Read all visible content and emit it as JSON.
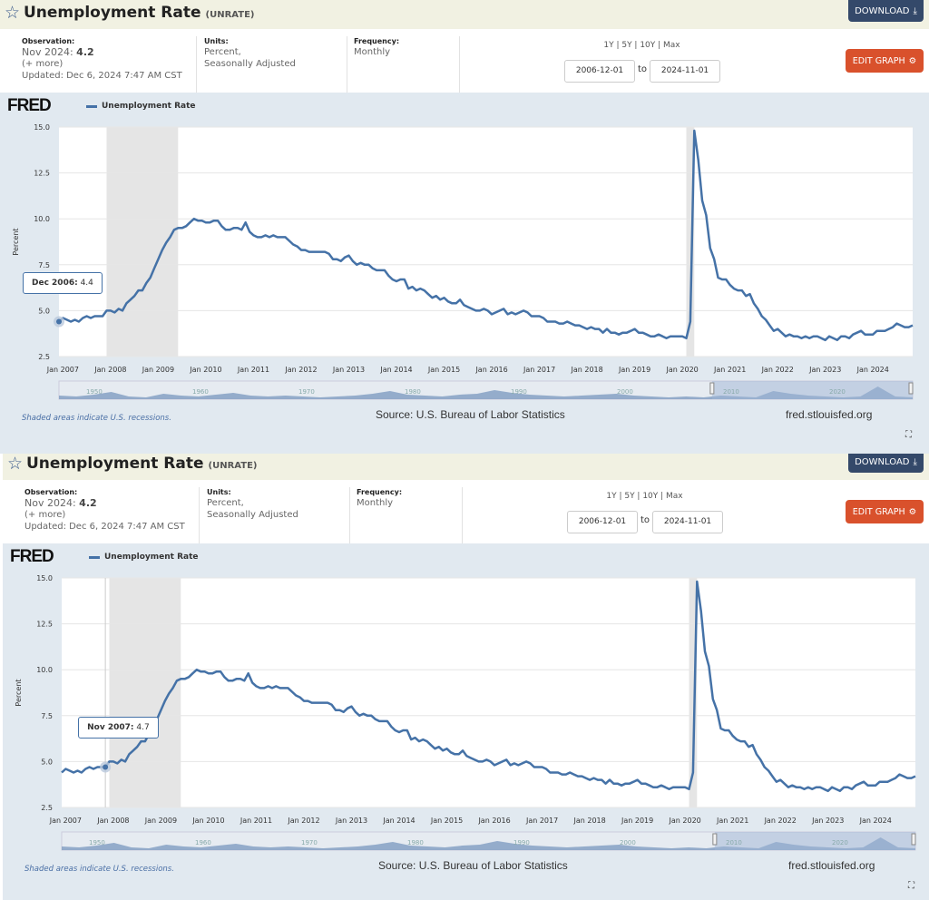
{
  "panels": [
    {
      "title": "Unemployment Rate",
      "code": "(UNRATE)",
      "download_label": "DOWNLOAD",
      "observation_label": "Observation:",
      "observation_date": "Nov 2024:",
      "observation_value": "4.2",
      "more_label": "(+ more)",
      "updated": "Updated: Dec 6, 2024 7:47 AM CST",
      "units_label": "Units:",
      "units_line1": "Percent,",
      "units_line2": "Seasonally Adjusted",
      "frequency_label": "Frequency:",
      "frequency_value": "Monthly",
      "ranges": "1Y | 5Y | 10Y | Max",
      "start_date": "2006-12-01",
      "to_label": "to",
      "end_date": "2024-11-01",
      "edit_label": "EDIT GRAPH",
      "fred_logo": "FRED",
      "legend_label": "Unemployment Rate",
      "recession_note": "Shaded areas indicate U.S. recessions.",
      "source": "Source: U.S. Bureau of Labor Statistics",
      "site": "fred.stlouisfed.org",
      "tooltip_date": "Dec 2006:",
      "tooltip_value": "4.4",
      "tooltip_index": 0
    },
    {
      "title": "Unemployment Rate",
      "code": "(UNRATE)",
      "download_label": "DOWNLOAD",
      "observation_label": "Observation:",
      "observation_date": "Nov 2024:",
      "observation_value": "4.2",
      "more_label": "(+ more)",
      "updated": "Updated: Dec 6, 2024 7:47 AM CST",
      "units_label": "Units:",
      "units_line1": "Percent,",
      "units_line2": "Seasonally Adjusted",
      "frequency_label": "Frequency:",
      "frequency_value": "Monthly",
      "ranges": "1Y | 5Y | 10Y | Max",
      "start_date": "2006-12-01",
      "to_label": "to",
      "end_date": "2024-11-01",
      "edit_label": "EDIT GRAPH",
      "fred_logo": "FRED",
      "legend_label": "Unemployment Rate",
      "recession_note": "Shaded areas indicate U.S. recessions.",
      "source": "Source: U.S. Bureau of Labor Statistics",
      "site": "fred.stlouisfed.org",
      "tooltip_date": "Nov 2007:",
      "tooltip_value": "4.7",
      "tooltip_index": 11
    }
  ],
  "chart_data": {
    "type": "line",
    "title": "Unemployment Rate",
    "ylabel": "Percent",
    "ylim": [
      2.5,
      15.0
    ],
    "yticks": [
      "2.5",
      "5.0",
      "7.5",
      "10.0",
      "12.5",
      "15.0"
    ],
    "start": "2006-12",
    "frequency": "monthly",
    "xticks": [
      "Jan 2007",
      "Jan 2008",
      "Jan 2009",
      "Jan 2010",
      "Jan 2011",
      "Jan 2012",
      "Jan 2013",
      "Jan 2014",
      "Jan 2015",
      "Jan 2016",
      "Jan 2017",
      "Jan 2018",
      "Jan 2019",
      "Jan 2020",
      "Jan 2021",
      "Jan 2022",
      "Jan 2023",
      "Jan 2024"
    ],
    "navigator_labels": [
      "1950",
      "1960",
      "1970",
      "1980",
      "1990",
      "2000",
      "2010",
      "2020"
    ],
    "recessions": [
      [
        "2007-12",
        "2009-06"
      ],
      [
        "2020-02",
        "2020-04"
      ]
    ],
    "color": "#4572a7",
    "values": [
      4.4,
      4.6,
      4.5,
      4.4,
      4.5,
      4.4,
      4.6,
      4.7,
      4.6,
      4.7,
      4.7,
      4.7,
      5.0,
      5.0,
      4.9,
      5.1,
      5.0,
      5.4,
      5.6,
      5.8,
      6.1,
      6.1,
      6.5,
      6.8,
      7.3,
      7.8,
      8.3,
      8.7,
      9.0,
      9.4,
      9.5,
      9.5,
      9.6,
      9.8,
      10.0,
      9.9,
      9.9,
      9.8,
      9.8,
      9.9,
      9.9,
      9.6,
      9.4,
      9.4,
      9.5,
      9.5,
      9.4,
      9.8,
      9.3,
      9.1,
      9.0,
      9.0,
      9.1,
      9.0,
      9.1,
      9.0,
      9.0,
      9.0,
      8.8,
      8.6,
      8.5,
      8.3,
      8.3,
      8.2,
      8.2,
      8.2,
      8.2,
      8.2,
      8.1,
      7.8,
      7.8,
      7.7,
      7.9,
      8.0,
      7.7,
      7.5,
      7.6,
      7.5,
      7.5,
      7.3,
      7.2,
      7.2,
      7.2,
      6.9,
      6.7,
      6.6,
      6.7,
      6.7,
      6.2,
      6.3,
      6.1,
      6.2,
      6.1,
      5.9,
      5.7,
      5.8,
      5.6,
      5.7,
      5.5,
      5.4,
      5.4,
      5.6,
      5.3,
      5.2,
      5.1,
      5.0,
      5.0,
      5.1,
      5.0,
      4.8,
      4.9,
      5.0,
      5.1,
      4.8,
      4.9,
      4.8,
      4.9,
      5.0,
      4.9,
      4.7,
      4.7,
      4.7,
      4.6,
      4.4,
      4.4,
      4.4,
      4.3,
      4.3,
      4.4,
      4.3,
      4.2,
      4.2,
      4.1,
      4.0,
      4.1,
      4.0,
      4.0,
      3.8,
      4.0,
      3.8,
      3.8,
      3.7,
      3.8,
      3.8,
      3.9,
      4.0,
      3.8,
      3.8,
      3.7,
      3.6,
      3.6,
      3.7,
      3.6,
      3.5,
      3.6,
      3.6,
      3.6,
      3.6,
      3.5,
      4.4,
      14.8,
      13.2,
      11.0,
      10.2,
      8.4,
      7.8,
      6.8,
      6.7,
      6.7,
      6.4,
      6.2,
      6.1,
      6.1,
      5.8,
      5.9,
      5.4,
      5.1,
      4.7,
      4.5,
      4.2,
      3.9,
      4.0,
      3.8,
      3.6,
      3.7,
      3.6,
      3.6,
      3.5,
      3.6,
      3.5,
      3.6,
      3.6,
      3.5,
      3.4,
      3.6,
      3.5,
      3.4,
      3.6,
      3.6,
      3.5,
      3.7,
      3.8,
      3.9,
      3.7,
      3.7,
      3.7,
      3.9,
      3.9,
      3.9,
      4.0,
      4.1,
      4.3,
      4.2,
      4.1,
      4.1,
      4.2
    ]
  }
}
